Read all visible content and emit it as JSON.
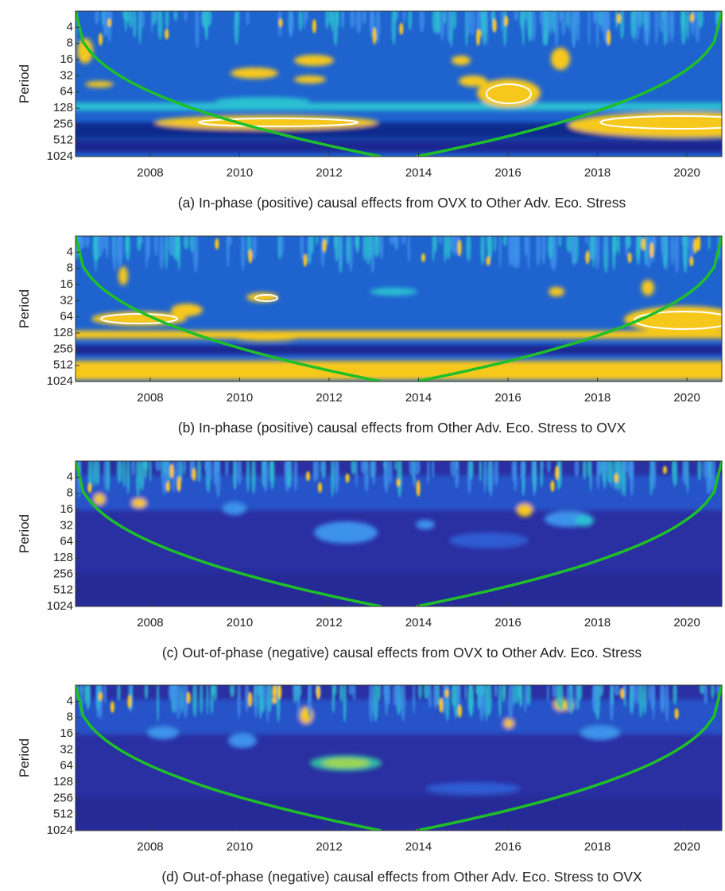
{
  "chart_data": [
    {
      "type": "wavelet",
      "caption": "(a) In-phase (positive) causal effects from OVX to Other Adv. Eco. Stress",
      "ylabel": "Period",
      "xlim": [
        2006.33,
        2020.78
      ],
      "xticks": [
        2008,
        2010,
        2012,
        2014,
        2016,
        2018,
        2020
      ],
      "ylim": [
        2,
        1024
      ],
      "yticks": [
        4,
        8,
        16,
        32,
        64,
        128,
        256,
        512,
        1024
      ],
      "log_y": true,
      "reverse_y": true,
      "coi_color": "#1fbf2a"
    },
    {
      "type": "wavelet",
      "caption": "(b) In-phase (positive) causal effects from Other Adv. Eco. Stress to OVX",
      "ylabel": "Period",
      "xlim": [
        2006.33,
        2020.78
      ],
      "xticks": [
        2008,
        2010,
        2012,
        2014,
        2016,
        2018,
        2020
      ],
      "ylim": [
        2,
        1024
      ],
      "yticks": [
        4,
        8,
        16,
        32,
        64,
        128,
        256,
        512,
        1024
      ],
      "log_y": true,
      "reverse_y": true,
      "coi_color": "#1fbf2a"
    },
    {
      "type": "wavelet",
      "caption": "(c) Out-of-phase (negative) causal effects from OVX to Other Adv. Eco. Stress",
      "ylabel": "Period",
      "xlim": [
        2006.33,
        2020.78
      ],
      "xticks": [
        2008,
        2010,
        2012,
        2014,
        2016,
        2018,
        2020
      ],
      "ylim": [
        2,
        1024
      ],
      "yticks": [
        4,
        8,
        16,
        32,
        64,
        128,
        256,
        512,
        1024
      ],
      "log_y": true,
      "reverse_y": true,
      "coi_color": "#1fbf2a"
    },
    {
      "type": "wavelet",
      "caption": "(d) Out-of-phase (negative) causal effects from Other Adv. Eco. Stress to OVX",
      "ylabel": "Period",
      "xlim": [
        2006.33,
        2020.78
      ],
      "xticks": [
        2008,
        2010,
        2012,
        2014,
        2016,
        2018,
        2020
      ],
      "ylim": [
        2,
        1024
      ],
      "yticks": [
        4,
        8,
        16,
        32,
        64,
        128,
        256,
        512,
        1024
      ],
      "log_y": true,
      "reverse_y": true,
      "coi_color": "#1fbf2a"
    }
  ]
}
